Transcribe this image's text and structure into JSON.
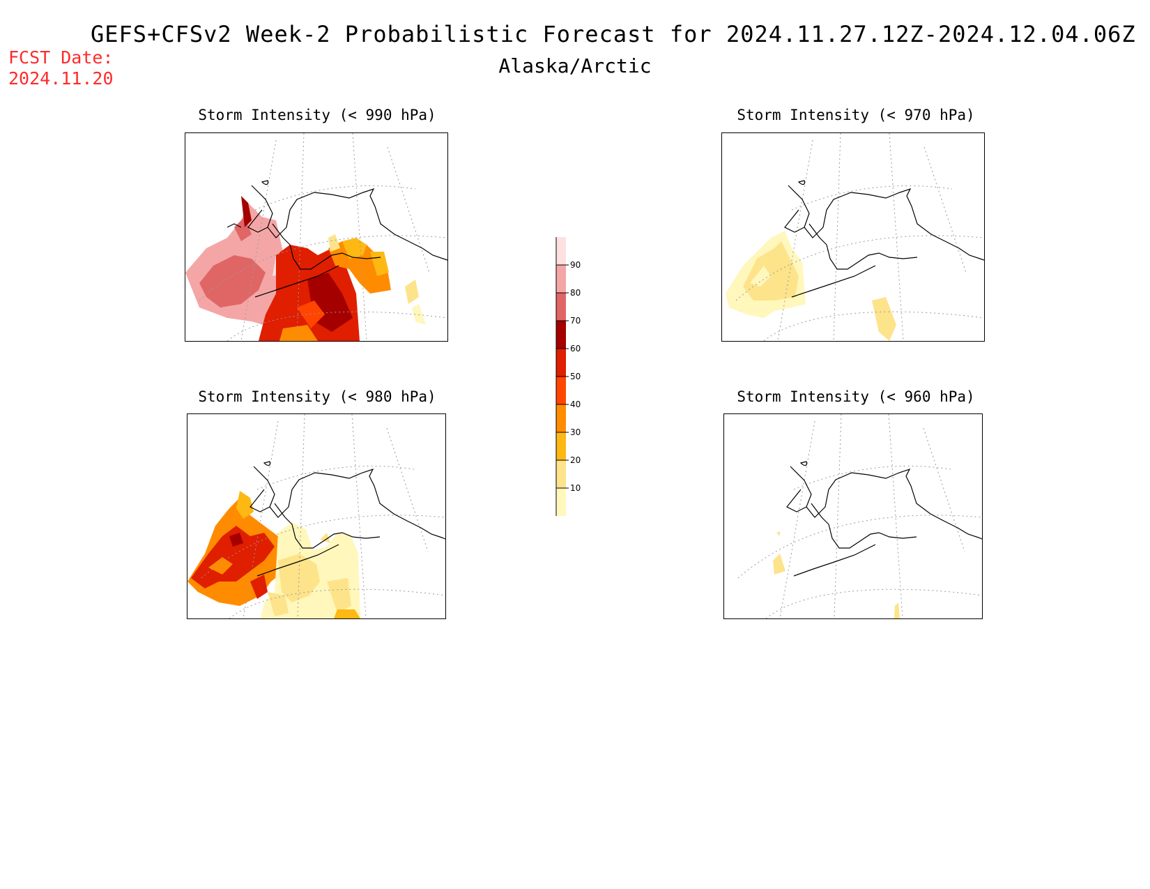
{
  "header": {
    "title": "GEFS+CFSv2 Week-2 Probabilistic Forecast for 2024.11.27.12Z-2024.12.04.06Z",
    "subtitle": "Alaska/Arctic",
    "fcst_label": "FCST Date:",
    "fcst_date": "2024.11.20"
  },
  "panels": [
    {
      "id": "p990",
      "title": "Storm Intensity (< 990 hPa)"
    },
    {
      "id": "p970",
      "title": "Storm Intensity (< 970 hPa)"
    },
    {
      "id": "p980",
      "title": "Storm Intensity (< 980 hPa)"
    },
    {
      "id": "p960",
      "title": "Storm Intensity (< 960 hPa)"
    }
  ],
  "colorbar": {
    "ticks": [
      "10",
      "20",
      "30",
      "40",
      "50",
      "60",
      "70",
      "80",
      "90"
    ],
    "colors": [
      "#fff7bc",
      "#fde38a",
      "#fdb813",
      "#ff8c00",
      "#ff4500",
      "#e01e00",
      "#a40000",
      "#e06666",
      "#f4a6a6",
      "#fde0e0"
    ]
  }
}
